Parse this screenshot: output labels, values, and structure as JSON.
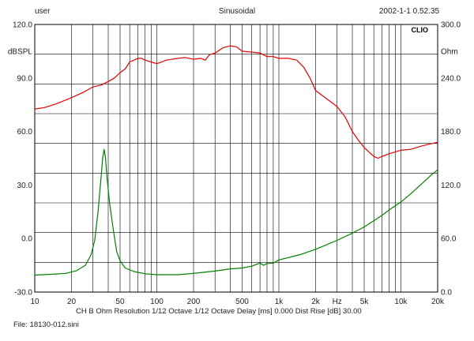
{
  "header": {
    "user": "user",
    "mode": "Sinusoidal",
    "timestamp": "2002-1-1 0.52.35"
  },
  "brand": "CLIO",
  "footer": {
    "settings": "CH B   Ohm   Resolution 1/12 Octave   1/12 Octave   Delay [ms] 0.000   Dist Rise [dB] 30.00",
    "file": "File: 18130-012.sini"
  },
  "colors": {
    "background": "#ffffff",
    "grid": "#000000",
    "spl": "#e00000",
    "impedance": "#008000"
  },
  "chart_data": {
    "type": "line",
    "x_scale": "log",
    "xlim": [
      10,
      20000
    ],
    "x_ticks": [
      {
        "v": 10,
        "label": "10"
      },
      {
        "v": 20,
        "label": "20"
      },
      {
        "v": 50,
        "label": "50"
      },
      {
        "v": 100,
        "label": "100"
      },
      {
        "v": 200,
        "label": "200"
      },
      {
        "v": 500,
        "label": "500"
      },
      {
        "v": 1000,
        "label": "1k"
      },
      {
        "v": 2000,
        "label": "2k"
      },
      {
        "v": 5000,
        "label": "5k"
      },
      {
        "v": 10000,
        "label": "10k"
      },
      {
        "v": 20000,
        "label": "20k"
      }
    ],
    "x_unit_label": "Hz",
    "y_left": {
      "label": "dBSPL",
      "lim": [
        -30,
        120
      ],
      "ticks": [
        "120.0",
        "90.0",
        "60.0",
        "30.0",
        "0.0",
        "-30.0"
      ]
    },
    "y_right": {
      "label": "Ohm",
      "lim": [
        0,
        300
      ],
      "ticks": [
        "300.0",
        "240.0",
        "180.0",
        "120.0",
        "60.0",
        "0.0"
      ]
    },
    "grid": true,
    "series": [
      {
        "axis": "left",
        "points": [
          [
            10,
            72.6
          ],
          [
            12,
            73.4
          ],
          [
            15,
            75.5
          ],
          [
            20,
            79
          ],
          [
            25,
            82
          ],
          [
            30,
            85
          ],
          [
            35,
            86
          ],
          [
            40,
            88
          ],
          [
            45,
            90
          ],
          [
            50,
            93
          ],
          [
            55,
            95
          ],
          [
            60,
            99
          ],
          [
            70,
            101
          ],
          [
            75,
            101
          ],
          [
            80,
            100
          ],
          [
            90,
            99
          ],
          [
            100,
            98
          ],
          [
            120,
            100
          ],
          [
            150,
            101
          ],
          [
            170,
            101.5
          ],
          [
            200,
            100.5
          ],
          [
            230,
            101
          ],
          [
            250,
            100
          ],
          [
            270,
            103
          ],
          [
            300,
            104
          ],
          [
            350,
            107
          ],
          [
            400,
            108
          ],
          [
            450,
            107.5
          ],
          [
            500,
            105
          ],
          [
            600,
            104.5
          ],
          [
            700,
            104
          ],
          [
            800,
            102
          ],
          [
            900,
            102
          ],
          [
            1000,
            101
          ],
          [
            1200,
            101
          ],
          [
            1400,
            100
          ],
          [
            1600,
            96
          ],
          [
            1800,
            90
          ],
          [
            2000,
            83
          ],
          [
            2500,
            78
          ],
          [
            3000,
            74
          ],
          [
            3500,
            68
          ],
          [
            4000,
            60
          ],
          [
            4500,
            55
          ],
          [
            5000,
            51
          ],
          [
            6000,
            46
          ],
          [
            6500,
            45
          ],
          [
            7000,
            46
          ],
          [
            8000,
            47.5
          ],
          [
            10000,
            49.5
          ],
          [
            12000,
            50
          ],
          [
            15000,
            52
          ],
          [
            20000,
            54
          ]
        ]
      },
      {
        "axis": "right",
        "points": [
          [
            10,
            19
          ],
          [
            14,
            20
          ],
          [
            18,
            21
          ],
          [
            22,
            24
          ],
          [
            26,
            30
          ],
          [
            29,
            42
          ],
          [
            31,
            58
          ],
          [
            33,
            90
          ],
          [
            35,
            130
          ],
          [
            36,
            150
          ],
          [
            37,
            160
          ],
          [
            38,
            150
          ],
          [
            39,
            130
          ],
          [
            41,
            100
          ],
          [
            44,
            70
          ],
          [
            47,
            45
          ],
          [
            50,
            35
          ],
          [
            55,
            27
          ],
          [
            65,
            23
          ],
          [
            80,
            20.5
          ],
          [
            100,
            19.5
          ],
          [
            150,
            19.5
          ],
          [
            200,
            21
          ],
          [
            300,
            23.5
          ],
          [
            400,
            26
          ],
          [
            500,
            27
          ],
          [
            600,
            29
          ],
          [
            700,
            32.5
          ],
          [
            750,
            30
          ],
          [
            800,
            32
          ],
          [
            900,
            32.5
          ],
          [
            1000,
            36
          ],
          [
            1500,
            42
          ],
          [
            2000,
            48
          ],
          [
            3000,
            58
          ],
          [
            4000,
            66
          ],
          [
            5000,
            73
          ],
          [
            6000,
            80
          ],
          [
            7000,
            86
          ],
          [
            8000,
            92
          ],
          [
            10000,
            101
          ],
          [
            12000,
            110
          ],
          [
            15000,
            122
          ],
          [
            18000,
            132
          ],
          [
            20000,
            137
          ]
        ]
      }
    ]
  }
}
